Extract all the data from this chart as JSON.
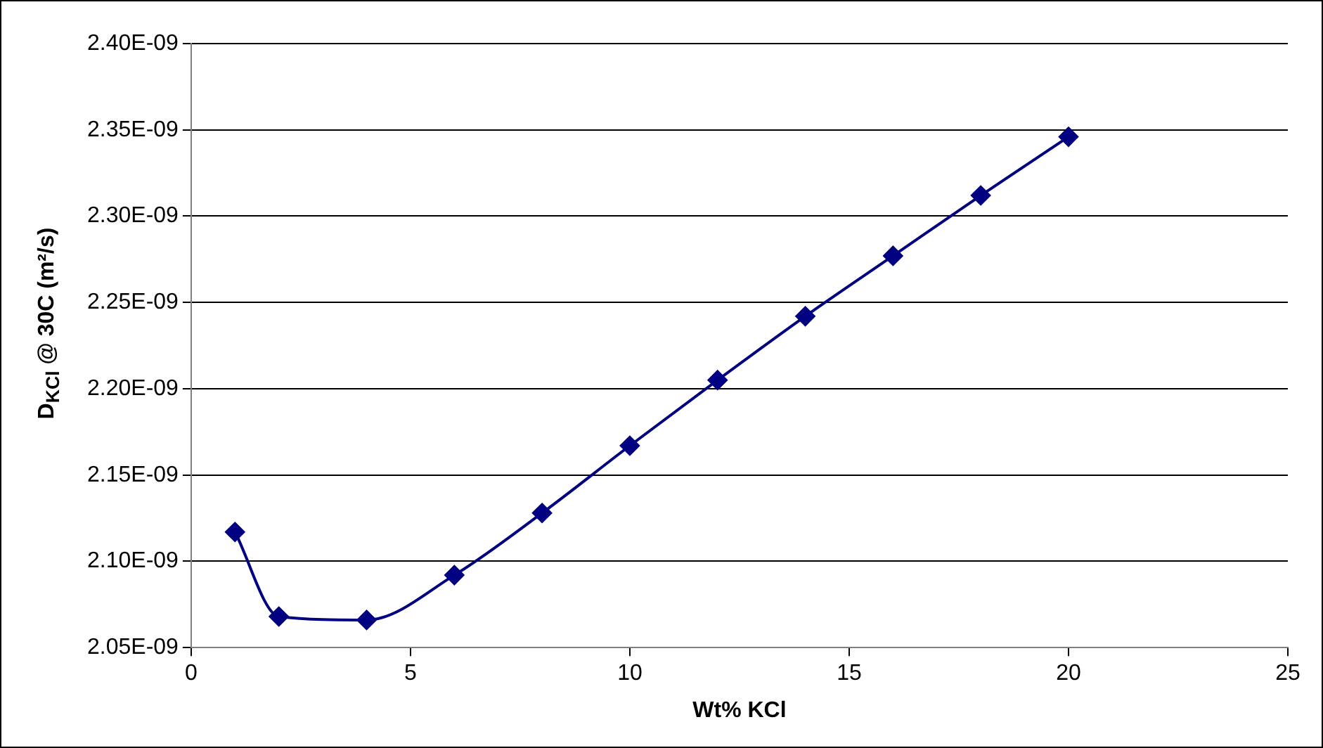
{
  "chart_data": {
    "type": "line",
    "xlabel": "Wt% KCl",
    "ylabel": "D$_{KCl}$ @ 30C (m²/s)",
    "x": [
      1,
      2,
      4,
      6,
      8,
      10,
      12,
      14,
      16,
      18,
      20
    ],
    "series": [
      {
        "color": "#000080",
        "values": [
          2.117e-09,
          2.068e-09,
          2.066e-09,
          2.092e-09,
          2.128e-09,
          2.167e-09,
          2.205e-09,
          2.242e-09,
          2.277e-09,
          2.312e-09,
          2.346e-09
        ]
      }
    ],
    "xlim": [
      0,
      25
    ],
    "xticks": [
      0,
      5,
      10,
      15,
      20,
      25
    ],
    "ylim": [
      2.05e-09,
      2.4e-09
    ],
    "yticks": [
      {
        "value": 2.05e-09,
        "label": "2.05E-09"
      },
      {
        "value": 2.1e-09,
        "label": "2.10E-09"
      },
      {
        "value": 2.15e-09,
        "label": "2.15E-09"
      },
      {
        "value": 2.2e-09,
        "label": "2.20E-09"
      },
      {
        "value": 2.25e-09,
        "label": "2.25E-09"
      },
      {
        "value": 2.3e-09,
        "label": "2.30E-09"
      },
      {
        "value": 2.35e-09,
        "label": "2.35E-09"
      },
      {
        "value": 2.4e-09,
        "label": "2.40E-09"
      }
    ],
    "grid": "y",
    "legend": false,
    "marker": "diamond",
    "line_style": "solid"
  }
}
